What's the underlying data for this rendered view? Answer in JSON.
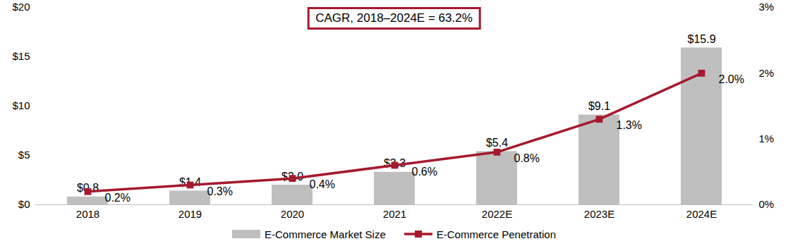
{
  "chart_data": {
    "type": "bar",
    "annotations": [
      "CAGR, 2018–2024E = 63.2%"
    ],
    "categories": [
      "2018",
      "2019",
      "2020",
      "2021",
      "2022E",
      "2023E",
      "2024E"
    ],
    "series": [
      {
        "name": "E-Commerce Market Size",
        "type": "bar",
        "color": "#bfbfbf",
        "values": [
          0.8,
          1.4,
          2.0,
          3.3,
          5.4,
          9.1,
          15.9
        ],
        "value_labels": [
          "$0.8",
          "$1.4",
          "$2.0",
          "$3.3",
          "$5.4",
          "$9.1",
          "$15.9"
        ]
      },
      {
        "name": "E-Commerce Penetration",
        "type": "line",
        "axis": "y2",
        "color": "#a6192e",
        "marker": "square",
        "values": [
          0.2,
          0.3,
          0.4,
          0.6,
          0.8,
          1.3,
          2.0
        ],
        "value_labels": [
          "0.2%",
          "0.3%",
          "0.4%",
          "0.6%",
          "0.8%",
          "1.3%",
          "2.0%"
        ]
      }
    ],
    "ylim": [
      0,
      20
    ],
    "yticks": [
      {
        "value": 0,
        "label": "$0"
      },
      {
        "value": 5,
        "label": "$5"
      },
      {
        "value": 10,
        "label": "$10"
      },
      {
        "value": 15,
        "label": "$15"
      },
      {
        "value": 20,
        "label": "$20"
      }
    ],
    "y2lim": [
      0,
      3
    ],
    "y2ticks": [
      {
        "value": 0,
        "label": "0%"
      },
      {
        "value": 1,
        "label": "1%"
      },
      {
        "value": 2,
        "label": "2%"
      },
      {
        "value": 3,
        "label": "3%"
      }
    ],
    "data_labels": true,
    "grid": false,
    "legend": "bottom"
  }
}
